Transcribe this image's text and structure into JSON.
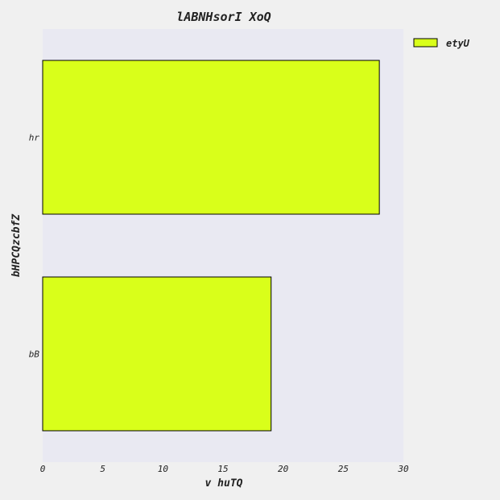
{
  "chart_data": {
    "type": "bar",
    "orientation": "horizontal",
    "title": "lABNHsorI XoQ",
    "xlabel": "v huTQ",
    "ylabel": "bHPCQzcbfZ",
    "categories": [
      "hr",
      "bB"
    ],
    "series": [
      {
        "name": "etyU",
        "values": [
          28,
          19
        ],
        "color": "#d9ff1a"
      }
    ],
    "xlim": [
      0,
      30
    ],
    "xticks": [
      "0",
      "5",
      "10",
      "15",
      "20",
      "25",
      "30"
    ],
    "grid": false,
    "legend_position": "outside-top-right",
    "colors": {
      "plot_background": "#e9e9f2",
      "bar_edge": "#000000"
    }
  }
}
